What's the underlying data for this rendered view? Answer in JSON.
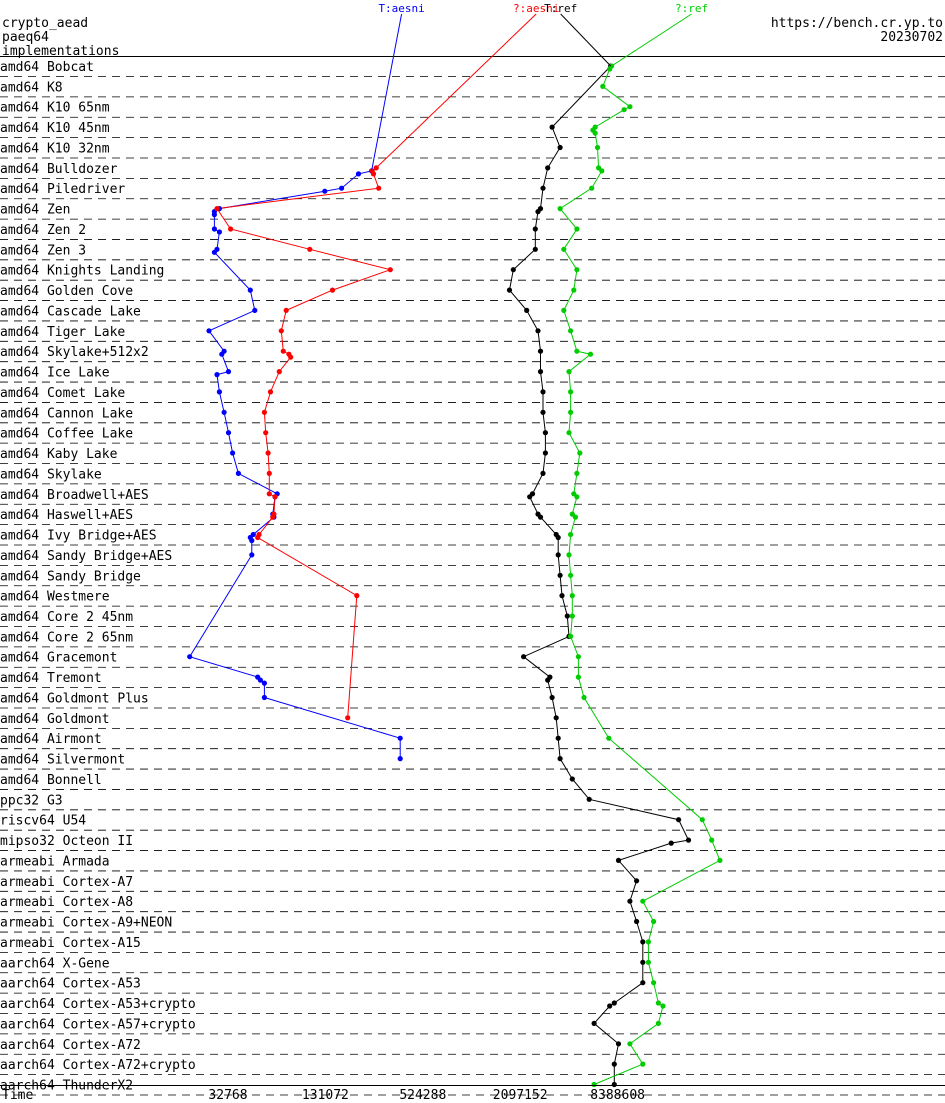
{
  "header": {
    "line1": "crypto_aead",
    "line2": "paeq64",
    "line3": "implementations",
    "url": "https://bench.cr.yp.to",
    "date": "20230702"
  },
  "chart_data": {
    "type": "scatter",
    "xaxis": {
      "label": "Time",
      "scale": "log2",
      "ticks": [
        32768,
        131072,
        524288,
        2097152,
        8388608
      ],
      "range": [
        1024,
        268435456
      ]
    },
    "series": [
      {
        "name": "T:aesni",
        "color": "#0000ff"
      },
      {
        "name": "?:aesni",
        "color": "#ff0000"
      },
      {
        "name": "T:ref",
        "color": "#000000"
      },
      {
        "name": "?:ref",
        "color": "#00cc00"
      }
    ],
    "categories": [
      "amd64 Bobcat",
      "amd64 K8",
      "amd64 K10 65nm",
      "amd64 K10 45nm",
      "amd64 K10 32nm",
      "amd64 Bulldozer",
      "amd64 Piledriver",
      "amd64 Zen",
      "amd64 Zen 2",
      "amd64 Zen 3",
      "amd64 Knights Landing",
      "amd64 Golden Cove",
      "amd64 Cascade Lake",
      "amd64 Tiger Lake",
      "amd64 Skylake+512x2",
      "amd64 Ice Lake",
      "amd64 Comet Lake",
      "amd64 Cannon Lake",
      "amd64 Coffee Lake",
      "amd64 Kaby Lake",
      "amd64 Skylake",
      "amd64 Broadwell+AES",
      "amd64 Haswell+AES",
      "amd64 Ivy Bridge+AES",
      "amd64 Sandy Bridge+AES",
      "amd64 Sandy Bridge",
      "amd64 Westmere",
      "amd64 Core 2 45nm",
      "amd64 Core 2 65nm",
      "amd64 Gracemont",
      "amd64 Tremont",
      "amd64 Goldmont Plus",
      "amd64 Goldmont",
      "amd64 Airmont",
      "amd64 Silvermont",
      "amd64 Bonnell",
      "ppc32 G3",
      "riscv64 U54",
      "mipso32 Octeon II",
      "armeabi Armada",
      "armeabi Cortex-A7",
      "armeabi Cortex-A8",
      "armeabi Cortex-A9+NEON",
      "armeabi Cortex-A15",
      "aarch64 X-Gene",
      "aarch64 Cortex-A53",
      "aarch64 Cortex-A53+crypto",
      "aarch64 Cortex-A57+crypto",
      "aarch64 Cortex-A72",
      "aarch64 Cortex-A72+crypto",
      "aarch64 ThunderX2"
    ],
    "points": {
      "T:aesni": [
        [
          5,
          1,
          253000
        ],
        [
          5,
          2,
          210000
        ],
        [
          6,
          0,
          165000
        ],
        [
          6,
          1,
          130000
        ],
        [
          7,
          0,
          29000
        ],
        [
          7,
          1,
          27000
        ],
        [
          7,
          2,
          27000
        ],
        [
          8,
          0,
          27000
        ],
        [
          8,
          1,
          29000
        ],
        [
          9,
          0,
          28000
        ],
        [
          9,
          1,
          27000
        ],
        [
          11,
          0,
          45000
        ],
        [
          12,
          0,
          48000
        ],
        [
          13,
          0,
          25000
        ],
        [
          14,
          0,
          31000
        ],
        [
          14,
          1,
          30000
        ],
        [
          15,
          0,
          33000
        ],
        [
          15,
          1,
          28000
        ],
        [
          16,
          0,
          29000
        ],
        [
          17,
          0,
          31000
        ],
        [
          18,
          0,
          33000
        ],
        [
          19,
          0,
          35000
        ],
        [
          20,
          0,
          38000
        ],
        [
          21,
          0,
          66000
        ],
        [
          21,
          1,
          64000
        ],
        [
          22,
          0,
          62000
        ],
        [
          22,
          1,
          63000
        ],
        [
          23,
          0,
          47000
        ],
        [
          23,
          1,
          45000
        ],
        [
          23,
          2,
          46000
        ],
        [
          24,
          0,
          46000
        ],
        [
          29,
          0,
          19000
        ],
        [
          30,
          0,
          50000
        ],
        [
          30,
          1,
          52000
        ],
        [
          30,
          2,
          55000
        ],
        [
          31,
          0,
          55000
        ],
        [
          33,
          0,
          380000
        ],
        [
          34,
          0,
          380000
        ]
      ],
      "?:aesni": [
        [
          5,
          0,
          270000
        ],
        [
          5,
          1,
          255000
        ],
        [
          5,
          2,
          260000
        ],
        [
          6,
          0,
          280000
        ],
        [
          7,
          0,
          28000
        ],
        [
          8,
          0,
          34000
        ],
        [
          9,
          0,
          105000
        ],
        [
          10,
          0,
          330000
        ],
        [
          11,
          0,
          145000
        ],
        [
          12,
          0,
          75000
        ],
        [
          13,
          0,
          70000
        ],
        [
          14,
          0,
          72000
        ],
        [
          14,
          1,
          78000
        ],
        [
          14,
          2,
          80000
        ],
        [
          15,
          0,
          68000
        ],
        [
          16,
          0,
          60000
        ],
        [
          17,
          0,
          55000
        ],
        [
          18,
          0,
          56000
        ],
        [
          19,
          0,
          58000
        ],
        [
          20,
          0,
          59000
        ],
        [
          21,
          0,
          59000
        ],
        [
          21,
          1,
          64000
        ],
        [
          22,
          0,
          63000
        ],
        [
          22,
          1,
          62000
        ],
        [
          23,
          0,
          51000
        ],
        [
          23,
          1,
          50000
        ],
        [
          26,
          0,
          205000
        ],
        [
          32,
          0,
          180000
        ]
      ],
      "T:ref": [
        [
          0,
          0,
          7600000
        ],
        [
          3,
          0,
          3300000
        ],
        [
          4,
          0,
          3700000
        ],
        [
          5,
          0,
          3100000
        ],
        [
          6,
          0,
          2900000
        ],
        [
          7,
          0,
          2800000
        ],
        [
          7,
          1,
          2700000
        ],
        [
          8,
          0,
          2600000
        ],
        [
          9,
          0,
          2600000
        ],
        [
          10,
          0,
          1900000
        ],
        [
          11,
          0,
          1800000
        ],
        [
          12,
          0,
          2300000
        ],
        [
          13,
          0,
          2700000
        ],
        [
          14,
          0,
          2800000
        ],
        [
          15,
          0,
          2800000
        ],
        [
          16,
          0,
          2900000
        ],
        [
          17,
          0,
          2900000
        ],
        [
          18,
          0,
          3000000
        ],
        [
          19,
          0,
          3000000
        ],
        [
          20,
          0,
          2900000
        ],
        [
          21,
          0,
          2500000
        ],
        [
          21,
          1,
          2400000
        ],
        [
          22,
          0,
          2700000
        ],
        [
          22,
          1,
          2800000
        ],
        [
          23,
          0,
          3500000
        ],
        [
          23,
          1,
          3600000
        ],
        [
          24,
          0,
          3600000
        ],
        [
          25,
          0,
          3700000
        ],
        [
          26,
          0,
          3800000
        ],
        [
          27,
          0,
          4100000
        ],
        [
          28,
          0,
          4200000
        ],
        [
          29,
          0,
          2200000
        ],
        [
          30,
          0,
          3200000
        ],
        [
          30,
          1,
          3100000
        ],
        [
          31,
          0,
          3300000
        ],
        [
          32,
          0,
          3500000
        ],
        [
          33,
          0,
          3600000
        ],
        [
          34,
          0,
          3700000
        ],
        [
          35,
          0,
          4400000
        ],
        [
          36,
          0,
          5600000
        ],
        [
          37,
          0,
          20000000
        ],
        [
          38,
          0,
          23000000
        ],
        [
          38,
          1,
          18000000
        ],
        [
          39,
          0,
          8500000
        ],
        [
          40,
          0,
          11000000
        ],
        [
          41,
          0,
          10000000
        ],
        [
          42,
          0,
          11000000
        ],
        [
          43,
          0,
          12000000
        ],
        [
          44,
          0,
          12000000
        ],
        [
          45,
          0,
          12000000
        ],
        [
          46,
          0,
          8000000
        ],
        [
          46,
          1,
          7500000
        ],
        [
          47,
          0,
          6000000
        ],
        [
          48,
          0,
          8500000
        ],
        [
          49,
          0,
          8000000
        ],
        [
          50,
          0,
          8000000
        ]
      ],
      "?:ref": [
        [
          0,
          0,
          7700000
        ],
        [
          0,
          1,
          7500000
        ],
        [
          1,
          0,
          6800000
        ],
        [
          2,
          0,
          10000000
        ],
        [
          2,
          1,
          9200000
        ],
        [
          3,
          0,
          6100000
        ],
        [
          3,
          1,
          5900000
        ],
        [
          3,
          2,
          6100000
        ],
        [
          4,
          0,
          6300000
        ],
        [
          5,
          0,
          6400000
        ],
        [
          5,
          1,
          6700000
        ],
        [
          6,
          0,
          5800000
        ],
        [
          7,
          0,
          3700000
        ],
        [
          8,
          0,
          4700000
        ],
        [
          9,
          0,
          3900000
        ],
        [
          10,
          0,
          4700000
        ],
        [
          11,
          0,
          4500000
        ],
        [
          12,
          0,
          3900000
        ],
        [
          13,
          0,
          4300000
        ],
        [
          14,
          0,
          4700000
        ],
        [
          14,
          1,
          5700000
        ],
        [
          15,
          0,
          4200000
        ],
        [
          16,
          0,
          4300000
        ],
        [
          17,
          0,
          4300000
        ],
        [
          18,
          0,
          4200000
        ],
        [
          19,
          0,
          4900000
        ],
        [
          20,
          0,
          4700000
        ],
        [
          21,
          0,
          4500000
        ],
        [
          21,
          1,
          4700000
        ],
        [
          22,
          0,
          4400000
        ],
        [
          22,
          1,
          4600000
        ],
        [
          23,
          0,
          4300000
        ],
        [
          24,
          0,
          4200000
        ],
        [
          25,
          0,
          4300000
        ],
        [
          26,
          0,
          4400000
        ],
        [
          27,
          0,
          4400000
        ],
        [
          28,
          0,
          4300000
        ],
        [
          29,
          0,
          4800000
        ],
        [
          30,
          0,
          4800000
        ],
        [
          31,
          0,
          5200000
        ],
        [
          33,
          0,
          7400000
        ],
        [
          37,
          0,
          28000000
        ],
        [
          38,
          0,
          32000000
        ],
        [
          39,
          0,
          36000000
        ],
        [
          41,
          0,
          12000000
        ],
        [
          42,
          0,
          14000000
        ],
        [
          43,
          0,
          13000000
        ],
        [
          44,
          0,
          13000000
        ],
        [
          45,
          0,
          14000000
        ],
        [
          46,
          0,
          15000000
        ],
        [
          46,
          1,
          16000000
        ],
        [
          47,
          0,
          15000000
        ],
        [
          48,
          0,
          10000000
        ],
        [
          49,
          0,
          12000000
        ],
        [
          50,
          0,
          6000000
        ]
      ]
    }
  }
}
